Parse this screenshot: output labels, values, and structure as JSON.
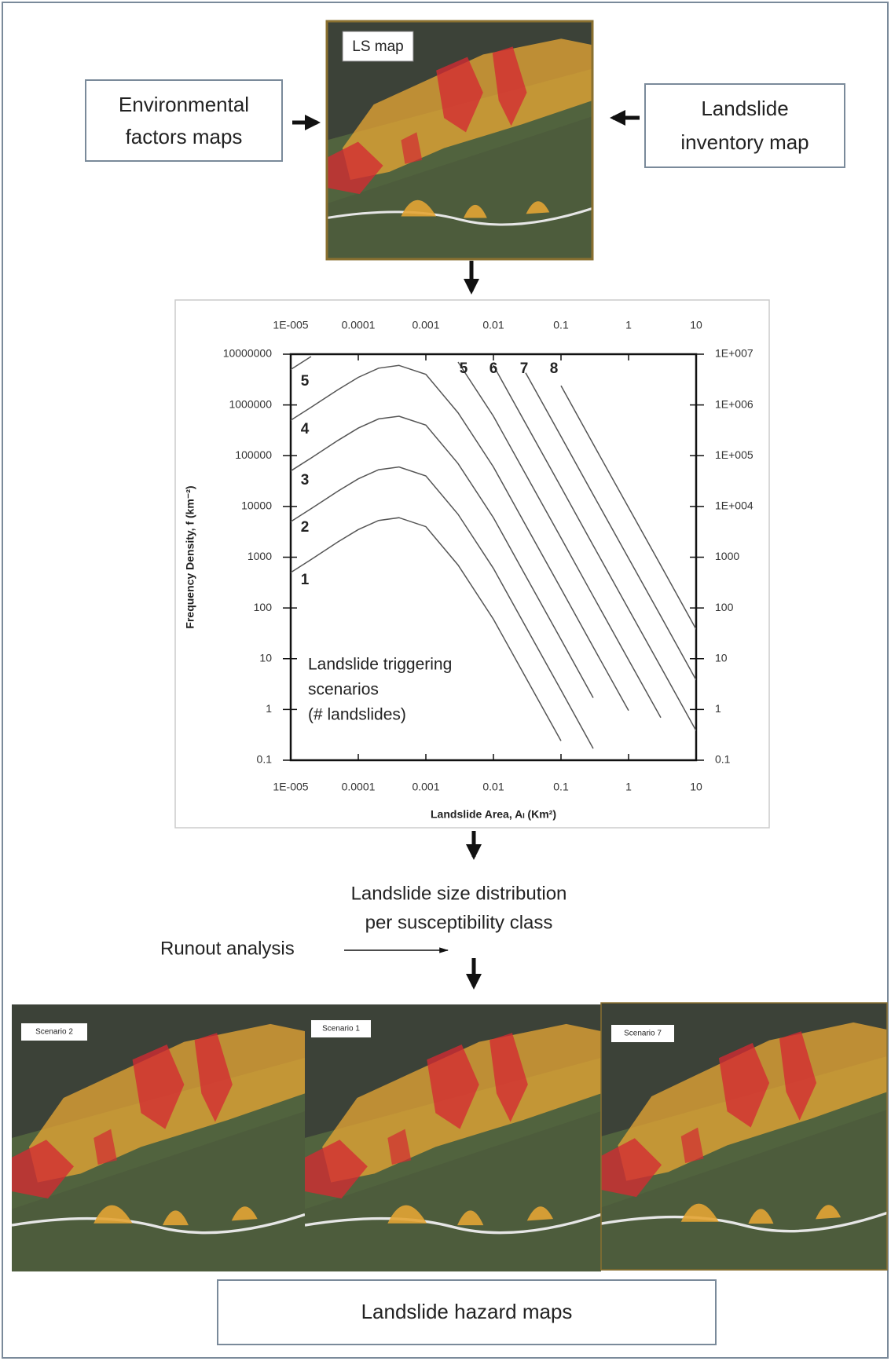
{
  "ls_map": {
    "label": "LS map"
  },
  "environmental_factors": {
    "lines": [
      "Environmental",
      "factors maps"
    ]
  },
  "landslide_inventory": {
    "lines": [
      "Landslide",
      "inventory map"
    ]
  },
  "size_distribution": {
    "lines": [
      "Landslide size distribution",
      "per susceptibility class"
    ]
  },
  "runout": {
    "label": "Runout analysis"
  },
  "scenario_maps": [
    {
      "label": "Scenario 2"
    },
    {
      "label": "Scenario 1"
    },
    {
      "label": "Scenario 7"
    }
  ],
  "hazard_maps": {
    "label": "Landslide hazard maps"
  },
  "chart_data": {
    "type": "line",
    "x_label": "Landslide Area, Aₗ (Km²)",
    "y_label": "Frequency Density, f (km⁻²)",
    "annotation": [
      "Landslide triggering",
      "scenarios",
      "(# landslides)"
    ],
    "xscale": "log",
    "yscale": "log",
    "x": [
      1e-05,
      2e-05,
      5e-05,
      0.0001,
      0.0002,
      0.0004,
      0.001,
      0.003,
      0.01,
      0.03,
      0.1,
      0.3,
      1,
      3,
      10
    ],
    "series": [
      {
        "name": "1",
        "color": "#555555",
        "values": [
          500,
          900,
          2000,
          3500,
          5300,
          6000,
          4000,
          700,
          60,
          4.3,
          0.24,
          null,
          null,
          null,
          null
        ]
      },
      {
        "name": "2",
        "color": "#555555",
        "values": [
          5000,
          9000,
          20000,
          35000,
          53000,
          60000,
          40000,
          7000,
          600,
          43,
          2.4,
          0.17,
          null,
          null,
          null
        ]
      },
      {
        "name": "3",
        "color": "#555555",
        "values": [
          50000,
          90000,
          200000,
          350000,
          530000,
          600000,
          400000,
          70000,
          6000,
          430,
          24,
          1.7,
          null,
          null,
          null
        ]
      },
      {
        "name": "4",
        "color": "#555555",
        "values": [
          500000,
          900000,
          2000000,
          3500000,
          5300000,
          6000000,
          4000000,
          700000,
          60000,
          4300,
          240,
          17,
          0.95,
          null,
          null
        ]
      },
      {
        "name": "5",
        "color": "#555555",
        "values": [
          5000000,
          9000000,
          null,
          null,
          null,
          null,
          null,
          7000000,
          600000,
          43000,
          2400,
          170,
          9.5,
          0.69,
          null
        ]
      },
      {
        "name": "6",
        "color": "#555555",
        "values": [
          null,
          null,
          null,
          null,
          null,
          null,
          null,
          null,
          6000000,
          430000,
          24000,
          1700,
          95,
          6.9,
          0.38
        ]
      },
      {
        "name": "7",
        "color": "#555555",
        "values": [
          null,
          null,
          null,
          null,
          null,
          null,
          null,
          null,
          null,
          4300000,
          240000,
          17000,
          950,
          69,
          3.8
        ]
      },
      {
        "name": "8",
        "color": "#555555",
        "values": [
          null,
          null,
          null,
          null,
          null,
          null,
          null,
          null,
          null,
          null,
          2400000,
          170000,
          9500,
          690,
          38
        ]
      }
    ],
    "xlim": [
      1e-05,
      10
    ],
    "ylim": [
      0.1,
      10000000
    ],
    "y2lim": [
      0.1,
      10000000
    ],
    "xticks": [
      {
        "value": 1e-05,
        "label": "1E-005"
      },
      0.0001,
      0.001,
      0.01,
      0.1,
      1,
      10
    ],
    "yticks": [
      0.1,
      1,
      10,
      100,
      1000,
      10000,
      100000,
      1000000,
      10000000
    ],
    "y2ticks": [
      0.1,
      1,
      10,
      100,
      1000,
      {
        "value": 10000,
        "label": "1E+004"
      },
      {
        "value": 100000,
        "label": "1E+005"
      },
      {
        "value": 1000000,
        "label": "1E+006"
      },
      {
        "value": 10000000,
        "label": "1E+007"
      }
    ]
  }
}
